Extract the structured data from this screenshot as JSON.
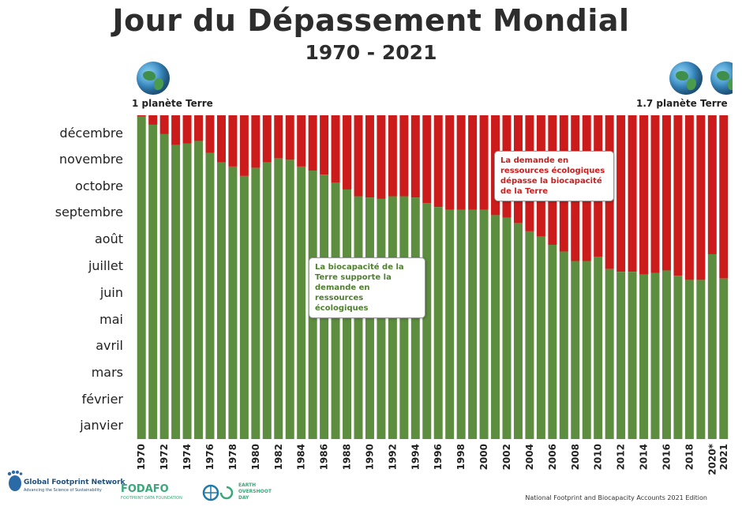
{
  "header": {
    "title": "Jour du Dépassement Mondial",
    "subtitle": "1970 - 2021"
  },
  "planets": {
    "left_label": "1 planète Terre",
    "right_label": "1.7 planète Terre"
  },
  "callouts": {
    "red_text": "La demande en ressources écologiques dépasse la biocapacité de la Terre",
    "green_text": "La biocapacité de la Terre supporte la demande en ressources écologiques"
  },
  "colors": {
    "biocapacity": "#5d8d3f",
    "overshoot": "#cc1b1b"
  },
  "footer": {
    "logo_gfn": "Global Footprint Network",
    "logo_gfn_tagline": "Advancing the Science of Sustainability",
    "logo_fodafo": "FODAFO",
    "logo_fodafo_tagline": "FOOTPRINT DATA FOUNDATION",
    "logo_eod_line1": "EARTH",
    "logo_eod_line2": "OVERSHOOT",
    "logo_eod_line3": "DAY",
    "edition": "National Footprint and Biocapacity Accounts 2021 Edition"
  },
  "chart_data": {
    "type": "bar",
    "stacked": true,
    "title": "Jour du Dépassement Mondial",
    "subtitle": "1970 - 2021",
    "y_axis": {
      "unit": "month",
      "range": [
        0,
        12
      ],
      "labels": [
        "janvier",
        "février",
        "mars",
        "avril",
        "mai",
        "juin",
        "juillet",
        "août",
        "septembre",
        "octobre",
        "novembre",
        "décembre"
      ]
    },
    "categories": [
      "1970",
      "1971",
      "1972",
      "1973",
      "1974",
      "1975",
      "1976",
      "1977",
      "1978",
      "1979",
      "1980",
      "1981",
      "1982",
      "1983",
      "1984",
      "1985",
      "1986",
      "1987",
      "1988",
      "1989",
      "1990",
      "1991",
      "1992",
      "1993",
      "1994",
      "1995",
      "1996",
      "1997",
      "1998",
      "1999",
      "2000",
      "2001",
      "2002",
      "2003",
      "2004",
      "2005",
      "2006",
      "2007",
      "2008",
      "2009",
      "2010",
      "2011",
      "2012",
      "2013",
      "2014",
      "2015",
      "2016",
      "2017",
      "2018",
      "2019",
      "2020*",
      "2021"
    ],
    "x_tick_labels": [
      "1970",
      "1972",
      "1974",
      "1976",
      "1978",
      "1980",
      "1982",
      "1984",
      "1986",
      "1988",
      "1990",
      "1992",
      "1994",
      "1996",
      "1998",
      "2000",
      "2002",
      "2004",
      "2006",
      "2008",
      "2010",
      "2012",
      "2014",
      "2016",
      "2018",
      "2020*",
      "2021"
    ],
    "series": [
      {
        "values": [
          11.95,
          11.65,
          11.3,
          10.9,
          10.95,
          11.05,
          10.6,
          10.25,
          10.1,
          9.75,
          10.05,
          10.25,
          10.4,
          10.35,
          10.1,
          9.95,
          9.8,
          9.5,
          9.25,
          9.0,
          8.95,
          8.9,
          9.0,
          9.0,
          8.95,
          8.75,
          8.6,
          8.5,
          8.5,
          8.5,
          8.5,
          8.3,
          8.2,
          8.0,
          7.7,
          7.5,
          7.2,
          6.95,
          6.6,
          6.6,
          6.75,
          6.3,
          6.2,
          6.2,
          6.1,
          6.15,
          6.25,
          6.05,
          5.9,
          5.9,
          6.85,
          5.95
        ]
      },
      {
        "values": [
          0.05,
          0.35,
          0.7,
          1.1,
          1.05,
          0.95,
          1.4,
          1.75,
          1.9,
          2.25,
          1.95,
          1.75,
          1.6,
          1.65,
          1.9,
          2.05,
          2.2,
          2.5,
          2.75,
          3.0,
          3.05,
          3.1,
          3.0,
          3.0,
          3.05,
          3.25,
          3.4,
          3.5,
          3.5,
          3.5,
          3.5,
          3.7,
          3.8,
          4.0,
          4.3,
          4.5,
          4.8,
          5.05,
          5.4,
          5.4,
          5.25,
          5.7,
          5.8,
          5.8,
          5.9,
          5.85,
          5.75,
          5.95,
          6.1,
          6.1,
          5.15,
          6.05
        ]
      }
    ]
  }
}
